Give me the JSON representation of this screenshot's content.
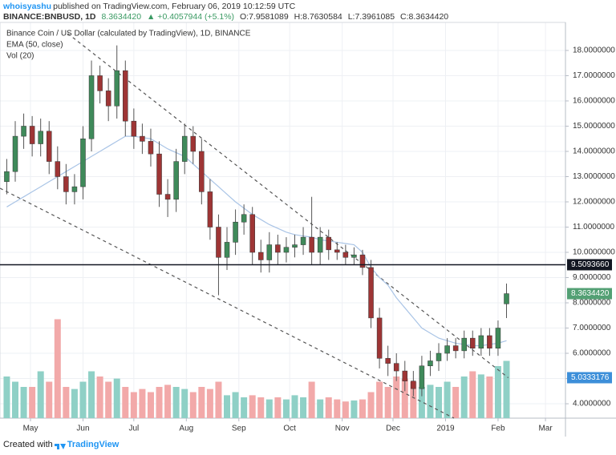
{
  "header": {
    "user": "whoisyashu",
    "published": "published on TradingView.com, February 06, 2019 10:12:59 UTC",
    "symbol": "BINANCE:BNBUSD, 1D",
    "last": "8.3634420",
    "change": "▲ +0.4057944 (+5.1%)",
    "open": "O:7.9581089",
    "high": "H:8.7630584",
    "low": "L:7.3961085",
    "close": "C:8.3634420"
  },
  "footer": {
    "created": "Created with",
    "brand": "TradingView"
  },
  "chart_data": {
    "type": "candlestick",
    "title": "Binance Coin / US Dollar (calculated by TradingView), 1D, BINANCE",
    "indicators": [
      "EMA (50, close)",
      "Vol (20)"
    ],
    "x": [
      -14,
      -9,
      -4,
      1,
      6,
      11,
      16,
      21,
      26,
      31,
      36,
      41,
      46,
      51,
      56,
      61,
      66,
      71,
      76,
      81,
      86,
      91,
      96,
      101,
      106,
      111,
      116,
      121,
      126,
      131,
      136,
      141,
      146,
      151,
      156,
      161,
      166,
      171,
      176,
      181,
      186,
      191,
      196,
      201,
      206,
      211,
      216,
      221,
      226,
      231,
      236,
      241,
      246,
      251,
      256,
      261,
      266,
      271,
      276,
      281
    ],
    "open": [
      12.8,
      13.2,
      14.6,
      15.0,
      14.3,
      14.8,
      13.6,
      13.0,
      12.4,
      12.6,
      14.5,
      17.0,
      16.4,
      15.8,
      17.2,
      15.2,
      14.6,
      14.4,
      13.9,
      12.3,
      12.1,
      13.6,
      14.6,
      14.0,
      12.4,
      11.0,
      9.8,
      10.4,
      11.2,
      11.5,
      10.0,
      9.7,
      10.3,
      10.0,
      10.2,
      10.3,
      10.6,
      10.0,
      10.6,
      10.1,
      10.0,
      9.8,
      9.9,
      9.4,
      7.4,
      5.8,
      5.6,
      5.3,
      4.9,
      4.6,
      5.5,
      5.7,
      6.0,
      6.3,
      6.1,
      6.6,
      6.2,
      6.7,
      6.2,
      7.9581089
    ],
    "high": [
      13.7,
      15.2,
      15.5,
      15.4,
      15.3,
      15.2,
      14.2,
      13.5,
      13.1,
      15.0,
      17.6,
      17.4,
      16.9,
      18.2,
      17.6,
      15.7,
      15.1,
      14.9,
      14.4,
      12.9,
      14.1,
      15.1,
      15.0,
      14.5,
      12.9,
      11.5,
      11.0,
      11.7,
      11.9,
      11.8,
      10.5,
      10.8,
      10.7,
      10.6,
      10.7,
      11.0,
      12.2,
      11.0,
      10.9,
      10.4,
      10.3,
      10.2,
      10.1,
      9.7,
      7.8,
      6.3,
      6.0,
      5.7,
      5.3,
      5.9,
      6.1,
      6.4,
      6.6,
      6.6,
      6.9,
      6.9,
      7.0,
      7.0,
      7.3,
      8.7630584
    ],
    "low": [
      12.3,
      12.8,
      14.1,
      13.8,
      13.8,
      13.1,
      12.5,
      11.9,
      11.9,
      12.1,
      14.0,
      15.9,
      15.2,
      15.3,
      14.6,
      14.1,
      13.9,
      13.4,
      11.8,
      11.4,
      11.6,
      13.1,
      13.5,
      11.9,
      10.5,
      8.3,
      9.3,
      9.9,
      10.7,
      9.5,
      9.2,
      9.2,
      9.5,
      9.6,
      9.8,
      9.9,
      9.5,
      9.5,
      9.7,
      9.7,
      9.5,
      9.5,
      9.1,
      7.0,
      5.4,
      5.1,
      4.9,
      4.5,
      4.3,
      4.3,
      5.1,
      5.3,
      5.7,
      5.8,
      5.8,
      5.9,
      5.9,
      5.9,
      5.9,
      7.3961085
    ],
    "close": [
      13.2,
      14.6,
      15.0,
      14.3,
      14.8,
      13.6,
      13.0,
      12.4,
      12.6,
      14.5,
      17.0,
      16.4,
      15.8,
      17.2,
      15.2,
      14.6,
      14.4,
      13.9,
      12.3,
      12.1,
      13.6,
      14.6,
      14.0,
      12.4,
      11.0,
      9.8,
      10.4,
      11.2,
      11.5,
      10.0,
      9.7,
      10.3,
      10.0,
      10.2,
      10.3,
      10.6,
      10.0,
      10.6,
      10.1,
      10.0,
      9.8,
      9.9,
      9.4,
      7.4,
      5.8,
      5.6,
      5.3,
      4.9,
      4.6,
      5.5,
      5.7,
      6.0,
      6.3,
      6.1,
      6.6,
      6.2,
      6.7,
      6.2,
      7.0,
      8.363442
    ],
    "ema": [
      11.8,
      12.0,
      12.2,
      12.4,
      12.6,
      12.8,
      13.0,
      13.2,
      13.4,
      13.6,
      13.8,
      14.0,
      14.2,
      14.4,
      14.6,
      14.6,
      14.55,
      14.5,
      14.3,
      14.1,
      13.95,
      13.8,
      13.5,
      13.2,
      12.9,
      12.6,
      12.3,
      12.0,
      11.75,
      11.5,
      11.3,
      11.1,
      10.95,
      10.8,
      10.7,
      10.65,
      10.6,
      10.5,
      10.45,
      10.4,
      10.35,
      10.3,
      10.0,
      9.4,
      9.0,
      8.7,
      8.2,
      7.8,
      7.4,
      7.0,
      6.8,
      6.6,
      6.5,
      6.4,
      6.35,
      6.3,
      6.3,
      6.35,
      6.4,
      6.5
    ],
    "volume": [
      40,
      35,
      30,
      30,
      45,
      35,
      95,
      30,
      28,
      35,
      45,
      40,
      35,
      38,
      30,
      25,
      28,
      25,
      30,
      32,
      30,
      28,
      25,
      30,
      28,
      35,
      22,
      25,
      20,
      22,
      20,
      18,
      20,
      18,
      22,
      20,
      35,
      18,
      20,
      18,
      16,
      17,
      18,
      25,
      35,
      30,
      40,
      38,
      35,
      30,
      32,
      30,
      35,
      30,
      40,
      45,
      42,
      40,
      50,
      55
    ],
    "volume_lim": [
      0,
      100
    ],
    "up_color": "#3f8a5a",
    "down_color": "#9e3535",
    "ema_color": "#a9c4e6",
    "volume_up_color": "#8fd0c6",
    "volume_down_color": "#f2a9a9",
    "trendlines": [
      {
        "x": [
          22,
          282
        ],
        "y": [
          18.67,
          5.0333176
        ]
      },
      {
        "x": [
          -18,
          250
        ],
        "y": [
          12.54,
          3.43
        ]
      }
    ],
    "price_labels": [
      {
        "value": 9.509366,
        "label": "9.5093660",
        "color": "#131722",
        "line": true
      },
      {
        "value": 8.363442,
        "label": "8.3634420",
        "color": "#53a074",
        "line": false
      },
      {
        "value": 5.0333176,
        "label": "5.0333176",
        "color": "#3d8fd9",
        "line": false
      }
    ],
    "xlim": [
      -18,
      315.8
    ],
    "ylim": [
      3.43,
      19.11
    ],
    "xticks": [
      {
        "value": 0,
        "label": "May"
      },
      {
        "value": 31,
        "label": "Jun"
      },
      {
        "value": 61,
        "label": "Jul"
      },
      {
        "value": 92,
        "label": "Aug"
      },
      {
        "value": 123,
        "label": "Sep"
      },
      {
        "value": 153,
        "label": "Oct"
      },
      {
        "value": 184,
        "label": "Nov"
      },
      {
        "value": 214,
        "label": "Dec"
      },
      {
        "value": 245,
        "label": "2019"
      },
      {
        "value": 276,
        "label": "Feb"
      },
      {
        "value": 304,
        "label": "Mar"
      }
    ],
    "yticks": [
      {
        "value": 4,
        "label": "4.0000000"
      },
      {
        "value": 5,
        "label": "5.0000000"
      },
      {
        "value": 6,
        "label": "6.0000000"
      },
      {
        "value": 7,
        "label": "7.0000000"
      },
      {
        "value": 8,
        "label": "8.0000000"
      },
      {
        "value": 9,
        "label": "9.0000000"
      },
      {
        "value": 10,
        "label": "10.0000000"
      },
      {
        "value": 11,
        "label": "11.0000000"
      },
      {
        "value": 12,
        "label": "12.0000000"
      },
      {
        "value": 13,
        "label": "13.0000000"
      },
      {
        "value": 14,
        "label": "14.0000000"
      },
      {
        "value": 15,
        "label": "15.0000000"
      },
      {
        "value": 16,
        "label": "16.0000000"
      },
      {
        "value": 17,
        "label": "17.0000000"
      },
      {
        "value": 18,
        "label": "18.0000000"
      }
    ],
    "grid": true
  }
}
